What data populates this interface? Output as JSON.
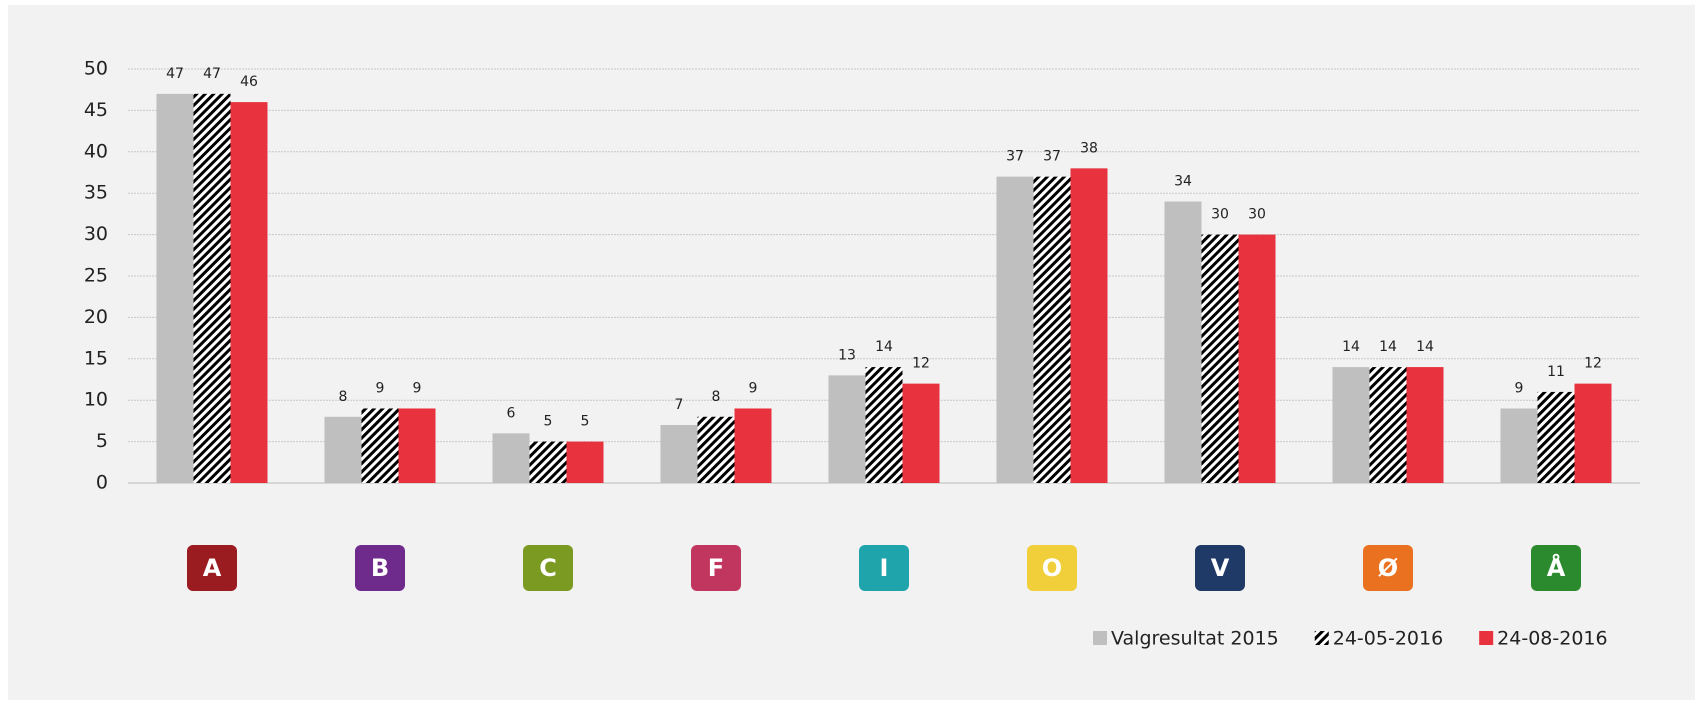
{
  "chart_data": {
    "type": "bar",
    "categories": [
      "A",
      "B",
      "C",
      "F",
      "I",
      "O",
      "V",
      "Ø",
      "Å"
    ],
    "category_colors": [
      "#9b1c20",
      "#6e2b8b",
      "#7a9a22",
      "#c0365e",
      "#20a4ac",
      "#f0cf3a",
      "#1f3a66",
      "#e9711f",
      "#2c8a2e"
    ],
    "series": [
      {
        "name": "Valgresultat 2015",
        "color": "#bfbfbf",
        "values": [
          47,
          8,
          6,
          7,
          13,
          37,
          34,
          14,
          9
        ]
      },
      {
        "name": "24-05-2016",
        "color": "#000000",
        "pattern": "hatch",
        "values": [
          47,
          9,
          5,
          8,
          14,
          37,
          30,
          14,
          11
        ]
      },
      {
        "name": "24-08-2016",
        "color": "#e8323e",
        "values": [
          46,
          9,
          5,
          9,
          12,
          38,
          30,
          14,
          12
        ]
      }
    ],
    "ylim": [
      0,
      50
    ],
    "yticks": [
      0,
      5,
      10,
      15,
      20,
      25,
      30,
      35,
      40,
      45,
      50
    ],
    "grid": true,
    "legend": "bottom-right"
  }
}
